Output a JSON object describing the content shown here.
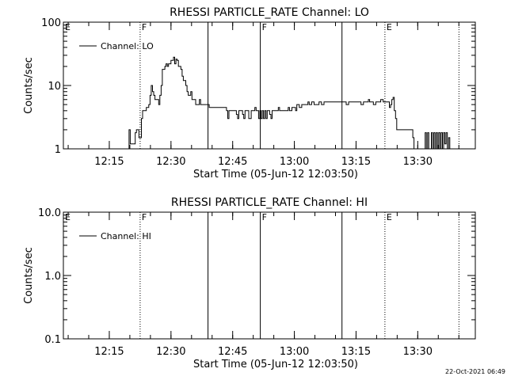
{
  "timestamp": "22-Oct-2021 06:49",
  "chart_data": [
    {
      "type": "line",
      "title": "RHESSI PARTICLE_RATE Channel: LO",
      "xlabel": "Start Time (05-Jun-12 12:03:50)",
      "ylabel": "Counts/sec",
      "y_scale": "log",
      "ylim": [
        1,
        100
      ],
      "yticks": [
        1,
        10,
        100
      ],
      "ytick_labels": [
        "1",
        "10",
        "100"
      ],
      "xlim": [
        12.063888,
        13.733333
      ],
      "xticks": [
        12.25,
        12.5,
        12.75,
        13.0,
        13.25,
        13.5
      ],
      "xtick_labels": [
        "12:15",
        "12:30",
        "12:45",
        "13:00",
        "13:15",
        "13:30"
      ],
      "legend": {
        "placement": "top-left",
        "label": "Channel: LO"
      },
      "markers": [
        {
          "x": 12.063888,
          "label": "E",
          "style": "none"
        },
        {
          "x": 12.375,
          "label": "F",
          "style": "dotted"
        },
        {
          "x": 12.65,
          "label": "",
          "style": "solid"
        },
        {
          "x": 12.862,
          "label": "F",
          "style": "solid"
        },
        {
          "x": 13.193,
          "label": "",
          "style": "solid"
        },
        {
          "x": 13.367,
          "label": "E",
          "style": "dotted"
        },
        {
          "x": 13.667,
          "label": "",
          "style": "dotted"
        }
      ],
      "series": [
        {
          "values": [
            [
              12.28,
              0.5
            ],
            [
              12.285,
              1
            ],
            [
              12.325,
              1
            ],
            [
              12.33,
              2
            ],
            [
              12.335,
              1.2
            ],
            [
              12.35,
              1.2
            ],
            [
              12.355,
              1.8
            ],
            [
              12.36,
              2
            ],
            [
              12.37,
              1.5
            ],
            [
              12.375,
              1.5
            ],
            [
              12.38,
              3
            ],
            [
              12.385,
              4
            ],
            [
              12.395,
              4
            ],
            [
              12.4,
              4.5
            ],
            [
              12.41,
              5
            ],
            [
              12.415,
              7
            ],
            [
              12.42,
              10
            ],
            [
              12.425,
              8
            ],
            [
              12.43,
              7
            ],
            [
              12.435,
              6
            ],
            [
              12.445,
              6
            ],
            [
              12.45,
              5
            ],
            [
              12.455,
              7
            ],
            [
              12.46,
              10
            ],
            [
              12.465,
              18
            ],
            [
              12.47,
              18
            ],
            [
              12.475,
              20
            ],
            [
              12.48,
              22
            ],
            [
              12.485,
              20
            ],
            [
              12.49,
              22
            ],
            [
              12.5,
              25
            ],
            [
              12.51,
              28
            ],
            [
              12.515,
              22
            ],
            [
              12.52,
              26
            ],
            [
              12.525,
              25
            ],
            [
              12.53,
              20
            ],
            [
              12.54,
              18
            ],
            [
              12.545,
              14
            ],
            [
              12.55,
              12
            ],
            [
              12.56,
              10
            ],
            [
              12.565,
              8
            ],
            [
              12.57,
              7
            ],
            [
              12.58,
              8
            ],
            [
              12.585,
              6
            ],
            [
              12.59,
              6
            ],
            [
              12.6,
              5
            ],
            [
              12.61,
              5
            ],
            [
              12.615,
              6
            ],
            [
              12.62,
              5
            ],
            [
              12.625,
              5
            ],
            [
              12.63,
              5
            ],
            [
              12.64,
              5
            ],
            [
              12.65,
              5
            ],
            [
              12.655,
              4.5
            ],
            [
              12.66,
              4.5
            ],
            [
              12.67,
              4.5
            ],
            [
              12.68,
              4.5
            ],
            [
              12.69,
              4.5
            ],
            [
              12.7,
              4.5
            ],
            [
              12.71,
              4.5
            ],
            [
              12.72,
              4.5
            ],
            [
              12.725,
              4
            ],
            [
              12.73,
              3
            ],
            [
              12.735,
              4
            ],
            [
              12.74,
              4
            ],
            [
              12.75,
              4
            ],
            [
              12.76,
              4
            ],
            [
              12.765,
              3.5
            ],
            [
              12.77,
              3
            ],
            [
              12.775,
              4
            ],
            [
              12.78,
              4
            ],
            [
              12.79,
              3.5
            ],
            [
              12.795,
              3
            ],
            [
              12.8,
              4
            ],
            [
              12.81,
              4
            ],
            [
              12.815,
              3
            ],
            [
              12.82,
              3
            ],
            [
              12.825,
              4
            ],
            [
              12.83,
              4
            ],
            [
              12.84,
              4.5
            ],
            [
              12.845,
              4
            ],
            [
              12.85,
              4
            ],
            [
              12.855,
              3
            ],
            [
              12.86,
              4
            ],
            [
              12.865,
              3
            ],
            [
              12.87,
              4
            ],
            [
              12.875,
              3
            ],
            [
              12.88,
              4
            ],
            [
              12.885,
              3
            ],
            [
              12.89,
              4
            ],
            [
              12.9,
              3.5
            ],
            [
              12.905,
              3
            ],
            [
              12.91,
              4
            ],
            [
              12.92,
              4
            ],
            [
              12.93,
              4
            ],
            [
              12.935,
              4.5
            ],
            [
              12.94,
              4
            ],
            [
              12.95,
              4
            ],
            [
              12.96,
              4
            ],
            [
              12.97,
              4
            ],
            [
              12.975,
              4.5
            ],
            [
              12.98,
              4
            ],
            [
              12.99,
              4.5
            ],
            [
              13.0,
              4.5
            ],
            [
              13.005,
              4
            ],
            [
              13.01,
              5
            ],
            [
              13.02,
              4.5
            ],
            [
              13.03,
              5
            ],
            [
              13.04,
              5
            ],
            [
              13.05,
              5
            ],
            [
              13.055,
              5.5
            ],
            [
              13.06,
              5
            ],
            [
              13.07,
              5.5
            ],
            [
              13.08,
              5
            ],
            [
              13.09,
              5
            ],
            [
              13.1,
              5.5
            ],
            [
              13.11,
              5
            ],
            [
              13.12,
              5.5
            ],
            [
              13.13,
              5.5
            ],
            [
              13.14,
              5.5
            ],
            [
              13.15,
              5.5
            ],
            [
              13.16,
              5.5
            ],
            [
              13.17,
              5.5
            ],
            [
              13.18,
              5.5
            ],
            [
              13.19,
              5.5
            ],
            [
              13.2,
              5.5
            ],
            [
              13.21,
              5
            ],
            [
              13.22,
              5.5
            ],
            [
              13.23,
              5.5
            ],
            [
              13.24,
              5.5
            ],
            [
              13.25,
              5.5
            ],
            [
              13.26,
              5.5
            ],
            [
              13.27,
              5
            ],
            [
              13.28,
              5.5
            ],
            [
              13.29,
              5.5
            ],
            [
              13.3,
              6
            ],
            [
              13.305,
              5.5
            ],
            [
              13.31,
              5.5
            ],
            [
              13.32,
              5
            ],
            [
              13.33,
              5.5
            ],
            [
              13.34,
              5.5
            ],
            [
              13.35,
              6
            ],
            [
              13.36,
              5.5
            ],
            [
              13.37,
              5.5
            ],
            [
              13.38,
              5.5
            ],
            [
              13.385,
              4.5
            ],
            [
              13.39,
              5
            ],
            [
              13.395,
              6
            ],
            [
              13.4,
              6.5
            ],
            [
              13.405,
              4
            ],
            [
              13.41,
              3
            ],
            [
              13.415,
              2
            ],
            [
              13.425,
              2
            ],
            [
              13.43,
              2
            ],
            [
              13.44,
              2
            ],
            [
              13.45,
              2
            ],
            [
              13.46,
              2
            ],
            [
              13.47,
              2
            ],
            [
              13.48,
              1.5
            ],
            [
              13.485,
              1
            ],
            [
              13.49,
              0.5
            ],
            [
              13.495,
              1
            ],
            [
              13.5,
              0.5
            ],
            [
              13.51,
              1
            ],
            [
              13.515,
              0.5
            ],
            [
              13.52,
              1
            ],
            [
              13.53,
              1.8
            ],
            [
              13.535,
              1
            ],
            [
              13.54,
              1.8
            ],
            [
              13.545,
              1
            ],
            [
              13.55,
              0.5
            ],
            [
              13.555,
              1.8
            ],
            [
              13.56,
              1
            ],
            [
              13.565,
              1.8
            ],
            [
              13.57,
              0.5
            ],
            [
              13.575,
              1.8
            ],
            [
              13.58,
              1
            ],
            [
              13.585,
              1.8
            ],
            [
              13.59,
              0.5
            ],
            [
              13.595,
              1.8
            ],
            [
              13.6,
              1
            ],
            [
              13.605,
              1.8
            ],
            [
              13.61,
              1.2
            ],
            [
              13.615,
              1.8
            ],
            [
              13.62,
              1
            ],
            [
              13.625,
              1.5
            ],
            [
              13.63,
              0.5
            ]
          ]
        }
      ]
    },
    {
      "type": "line",
      "title": "RHESSI PARTICLE_RATE Channel: HI",
      "xlabel": "Start Time (05-Jun-12 12:03:50)",
      "ylabel": "Counts/sec",
      "y_scale": "log",
      "ylim": [
        0.1,
        10
      ],
      "yticks": [
        0.1,
        1,
        10
      ],
      "ytick_labels": [
        "0.1",
        "1.0",
        "10.0"
      ],
      "xlim": [
        12.063888,
        13.733333
      ],
      "xticks": [
        12.25,
        12.5,
        12.75,
        13.0,
        13.25,
        13.5
      ],
      "xtick_labels": [
        "12:15",
        "12:30",
        "12:45",
        "13:00",
        "13:15",
        "13:30"
      ],
      "legend": {
        "placement": "top-left",
        "label": "Channel: HI"
      },
      "markers": [
        {
          "x": 12.063888,
          "label": "E",
          "style": "none"
        },
        {
          "x": 12.375,
          "label": "F",
          "style": "dotted"
        },
        {
          "x": 12.65,
          "label": "",
          "style": "solid"
        },
        {
          "x": 12.862,
          "label": "F",
          "style": "solid"
        },
        {
          "x": 13.193,
          "label": "",
          "style": "solid"
        },
        {
          "x": 13.367,
          "label": "E",
          "style": "dotted"
        },
        {
          "x": 13.667,
          "label": "",
          "style": "dotted"
        }
      ],
      "series": [
        {
          "values": []
        }
      ]
    }
  ]
}
